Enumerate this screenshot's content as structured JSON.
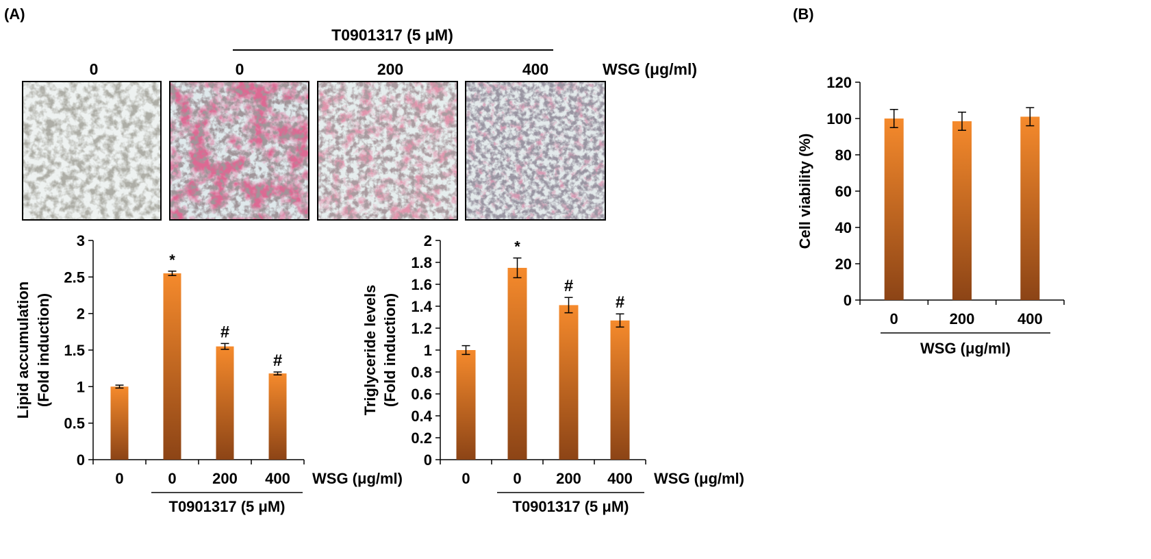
{
  "panel_labels": {
    "a": "(A)",
    "b": "(B)"
  },
  "top": {
    "treatment_label": "T0901317 (5 μM)",
    "wsg_label": "WSG (μg/ml)",
    "doses": [
      "0",
      "0",
      "200",
      "400"
    ]
  },
  "colors": {
    "bar_top": "#f58a2c",
    "bar_bottom": "#8c4416",
    "stain": "#b8244a",
    "background_field": "#dfe9ec"
  },
  "chart_data": [
    {
      "type": "bar",
      "ylabel_line1": "Lipid accumulation",
      "ylabel_line2": "(Fold induction)",
      "categories": [
        "0",
        "0",
        "200",
        "400"
      ],
      "values": [
        1.0,
        2.55,
        1.55,
        1.18
      ],
      "errors": [
        0.02,
        0.03,
        0.04,
        0.02
      ],
      "annotations": [
        "",
        "*",
        "#",
        "#"
      ],
      "ylim": [
        0,
        3
      ],
      "yticks": [
        "0",
        "0.5",
        "1",
        "1.5",
        "2",
        "2.5",
        "3"
      ],
      "xgroup_label": "WSG (μg/ml)",
      "bracket_label": "T0901317 (5 μM)"
    },
    {
      "type": "bar",
      "ylabel_line1": "Triglyceride levels",
      "ylabel_line2": "(Fold induction)",
      "categories": [
        "0",
        "0",
        "200",
        "400"
      ],
      "values": [
        1.0,
        1.75,
        1.41,
        1.27
      ],
      "errors": [
        0.04,
        0.09,
        0.07,
        0.06
      ],
      "annotations": [
        "",
        "*",
        "#",
        "#"
      ],
      "ylim": [
        0,
        2
      ],
      "yticks": [
        "0",
        "0.2",
        "0.4",
        "0.6",
        "0.8",
        "1",
        "1.2",
        "1.4",
        "1.6",
        "1.8",
        "2"
      ],
      "xgroup_label": "WSG (μg/ml)",
      "bracket_label": "T0901317 (5 μM)"
    },
    {
      "type": "bar",
      "ylabel_line1": "Cell viability (%)",
      "categories": [
        "0",
        "200",
        "400"
      ],
      "values": [
        100,
        98.5,
        101
      ],
      "errors": [
        5,
        5,
        5
      ],
      "annotations": [
        "",
        "",
        ""
      ],
      "ylim": [
        0,
        120
      ],
      "yticks": [
        "0",
        "20",
        "40",
        "60",
        "80",
        "100",
        "120"
      ],
      "xgroup_label": "WSG (μg/ml)"
    }
  ]
}
